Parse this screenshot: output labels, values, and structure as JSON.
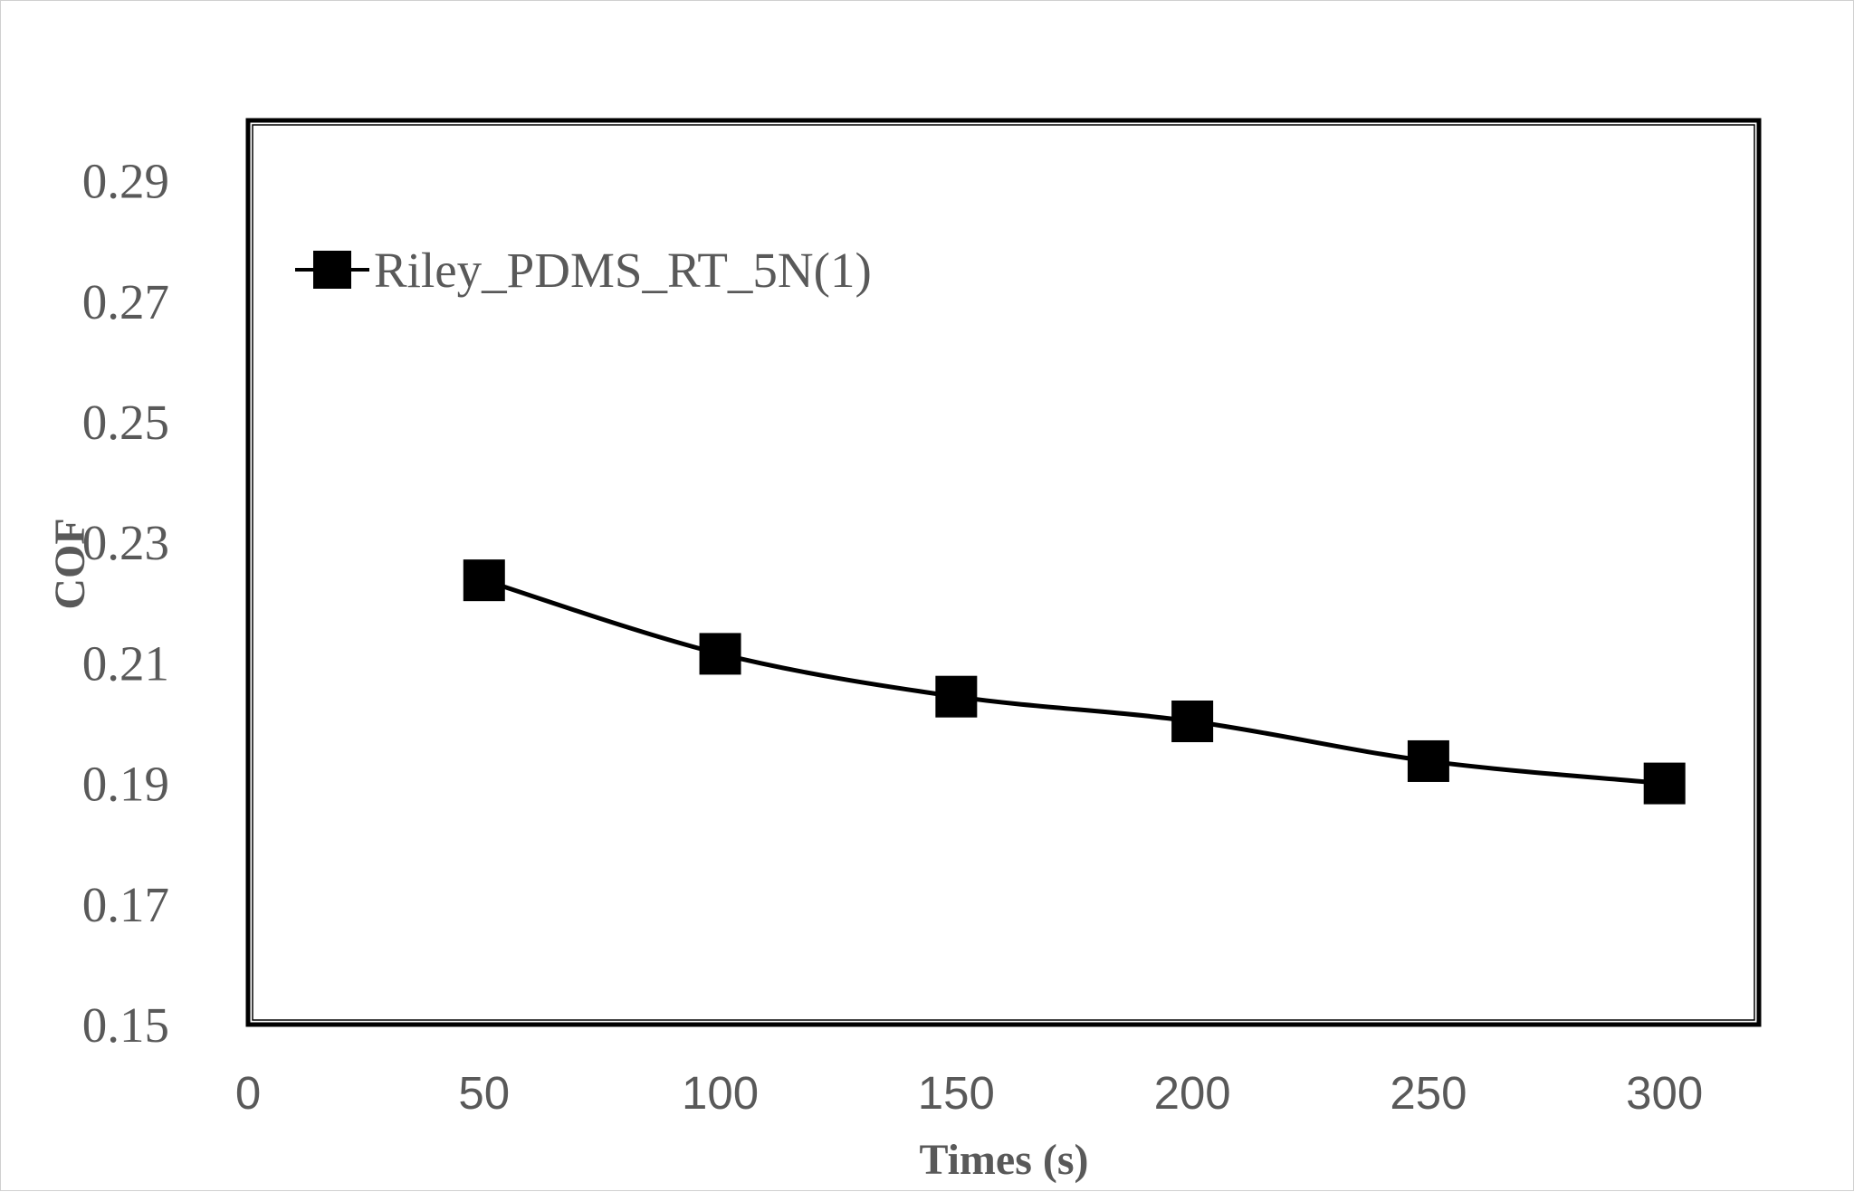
{
  "chart_data": {
    "type": "line",
    "title": "",
    "xlabel": "Times (s)",
    "ylabel": "COF",
    "xlim": [
      0,
      320
    ],
    "ylim": [
      0.15,
      0.3
    ],
    "x_ticks": [
      "0",
      "50",
      "100",
      "150",
      "200",
      "250",
      "300"
    ],
    "y_ticks": [
      "0.15",
      "0.17",
      "0.19",
      "0.21",
      "0.23",
      "0.25",
      "0.27",
      "0.29"
    ],
    "grid": false,
    "legend_position": "top-left",
    "series": [
      {
        "name": "Riley_PDMS_RT_5N(1)",
        "marker": "square",
        "color": "#000000",
        "x": [
          50,
          100,
          150,
          200,
          250,
          300
        ],
        "y": [
          0.2237,
          0.2115,
          0.2044,
          0.2003,
          0.1937,
          0.19
        ]
      }
    ]
  }
}
